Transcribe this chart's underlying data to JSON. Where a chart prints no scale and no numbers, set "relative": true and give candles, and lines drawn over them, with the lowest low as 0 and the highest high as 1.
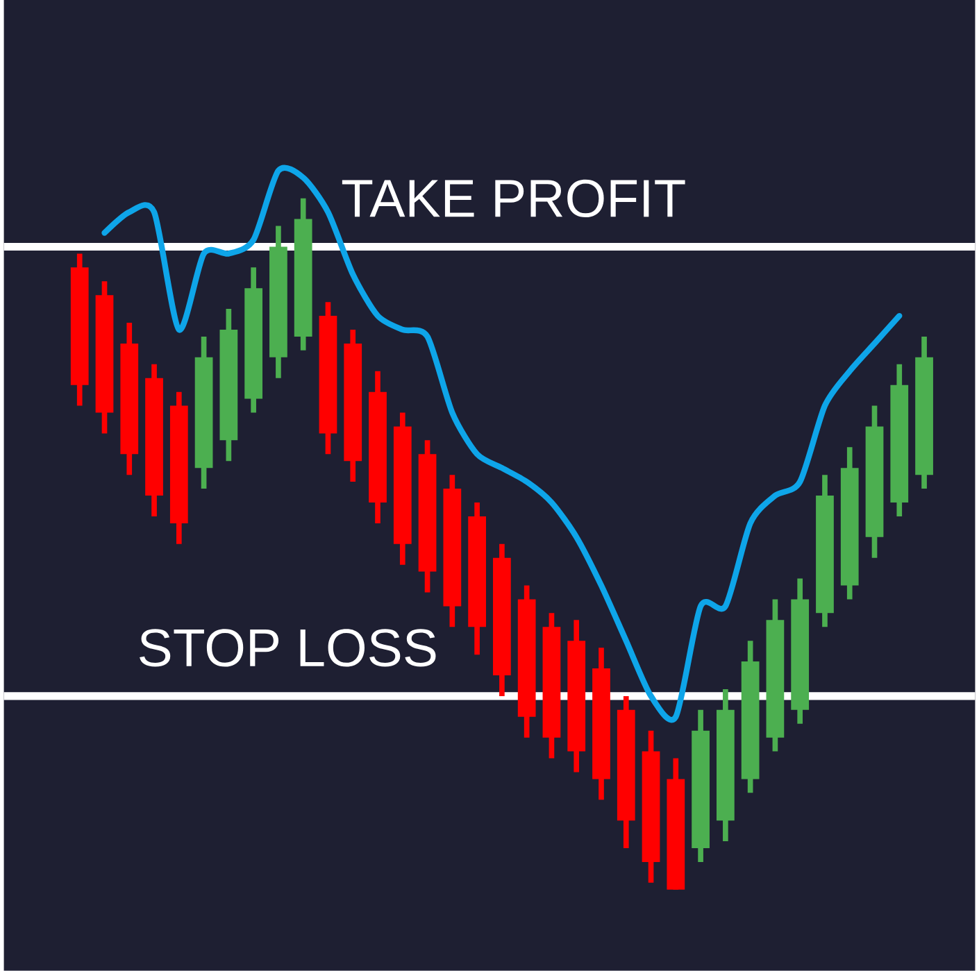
{
  "chart_data": {
    "type": "candlestick",
    "relative": true,
    "categories": [
      null,
      null,
      null,
      null,
      null,
      null,
      null,
      null,
      null,
      null,
      null,
      null,
      null,
      null,
      null,
      null,
      null,
      null,
      null,
      null,
      null,
      null,
      null,
      null,
      null,
      null,
      null,
      null,
      null,
      null,
      null,
      null,
      null,
      null,
      null
    ],
    "ohlc": [
      [
        0.9,
        0.92,
        0.7,
        0.73
      ],
      [
        0.86,
        0.88,
        0.66,
        0.69
      ],
      [
        0.79,
        0.82,
        0.6,
        0.63
      ],
      [
        0.74,
        0.76,
        0.54,
        0.57
      ],
      [
        0.7,
        0.72,
        0.5,
        0.53
      ],
      [
        0.61,
        0.8,
        0.58,
        0.77
      ],
      [
        0.65,
        0.84,
        0.62,
        0.81
      ],
      [
        0.71,
        0.9,
        0.69,
        0.87
      ],
      [
        0.77,
        0.96,
        0.74,
        0.93
      ],
      [
        0.8,
        1.0,
        0.78,
        0.97
      ],
      [
        0.83,
        0.85,
        0.63,
        0.66
      ],
      [
        0.79,
        0.81,
        0.59,
        0.62
      ],
      [
        0.72,
        0.75,
        0.53,
        0.56
      ],
      [
        0.67,
        0.69,
        0.47,
        0.5
      ],
      [
        0.63,
        0.65,
        0.43,
        0.46
      ],
      [
        0.58,
        0.6,
        0.38,
        0.41
      ],
      [
        0.54,
        0.56,
        0.34,
        0.38
      ],
      [
        0.48,
        0.5,
        0.28,
        0.31
      ],
      [
        0.42,
        0.44,
        0.22,
        0.25
      ],
      [
        0.38,
        0.4,
        0.19,
        0.22
      ],
      [
        0.36,
        0.39,
        0.17,
        0.2
      ],
      [
        0.32,
        0.35,
        0.13,
        0.16
      ],
      [
        0.26,
        0.28,
        0.06,
        0.1
      ],
      [
        0.2,
        0.23,
        0.01,
        0.04
      ],
      [
        0.16,
        0.19,
        0.0,
        0.0
      ],
      [
        0.06,
        0.26,
        0.04,
        0.23
      ],
      [
        0.1,
        0.29,
        0.07,
        0.26
      ],
      [
        0.16,
        0.36,
        0.14,
        0.33
      ],
      [
        0.22,
        0.42,
        0.2,
        0.39
      ],
      [
        0.26,
        0.45,
        0.24,
        0.42
      ],
      [
        0.4,
        0.6,
        0.38,
        0.57
      ],
      [
        0.44,
        0.64,
        0.42,
        0.61
      ],
      [
        0.51,
        0.7,
        0.48,
        0.67
      ],
      [
        0.56,
        0.76,
        0.54,
        0.73
      ],
      [
        0.6,
        0.8,
        0.58,
        0.77
      ]
    ],
    "colors": [
      "#ff0000",
      "#ff0000",
      "#ff0000",
      "#ff0000",
      "#ff0000",
      "#4caf50",
      "#4caf50",
      "#4caf50",
      "#4caf50",
      "#4caf50",
      "#ff0000",
      "#ff0000",
      "#ff0000",
      "#ff0000",
      "#ff0000",
      "#ff0000",
      "#ff0000",
      "#ff0000",
      "#ff0000",
      "#ff0000",
      "#ff0000",
      "#ff0000",
      "#ff0000",
      "#ff0000",
      "#ff0000",
      "#4caf50",
      "#4caf50",
      "#4caf50",
      "#4caf50",
      "#4caf50",
      "#4caf50",
      "#4caf50",
      "#4caf50",
      "#4caf50",
      "#4caf50"
    ],
    "series": [
      {
        "type": "line",
        "color": "#0ea5e9",
        "values": [
          null,
          0.95,
          0.98,
          0.98,
          0.81,
          0.92,
          0.92,
          0.94,
          1.04,
          1.03,
          0.98,
          0.89,
          0.83,
          0.81,
          0.8,
          0.69,
          0.63,
          0.61,
          0.59,
          0.56,
          0.51,
          0.44,
          0.36,
          0.28,
          0.25,
          0.41,
          0.41,
          0.53,
          0.57,
          0.59,
          0.7,
          0.75,
          0.79,
          0.83,
          null
        ]
      }
    ],
    "ref_lines": [
      {
        "axis": "y",
        "value": 0.93,
        "label": "TAKE PROFIT",
        "color": "#ffffff"
      },
      {
        "axis": "y",
        "value": 0.28,
        "label": "STOP LOSS",
        "color": "#ffffff"
      }
    ]
  }
}
